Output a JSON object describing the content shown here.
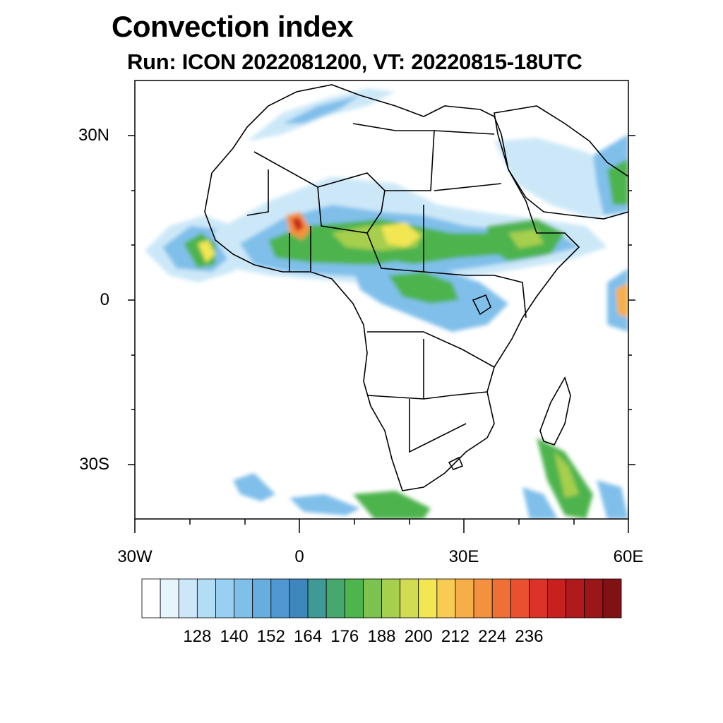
{
  "title": "Convection index",
  "subtitle": "Run: ICON 2022081200,  VT: 20220815-18UTC",
  "axes": {
    "y_ticks": [
      "30N",
      "0",
      "30S"
    ],
    "x_ticks": [
      "30W",
      "0",
      "30E",
      "60E"
    ]
  },
  "colorbar": {
    "colors": [
      "#ffffff",
      "#e6f4fc",
      "#cce8f8",
      "#b3dcf5",
      "#99d0f2",
      "#80bfea",
      "#66aee0",
      "#5098d2",
      "#3e86be",
      "#3f9a96",
      "#46a86e",
      "#4db44e",
      "#7cc24e",
      "#a6cf4e",
      "#d2dc52",
      "#f2e653",
      "#f8cc52",
      "#f6ae48",
      "#f4913e",
      "#ee7036",
      "#e8502e",
      "#dc3228",
      "#c8201f",
      "#b01a1c",
      "#9a1619",
      "#801214"
    ],
    "labels": [
      "128",
      "140",
      "152",
      "164",
      "176",
      "188",
      "200",
      "212",
      "224",
      "236"
    ]
  },
  "regions": {
    "sahel_band_colors": [
      "#cce8f8",
      "#80bfea",
      "#3e86be",
      "#4db44e",
      "#a6cf4e",
      "#f2e653",
      "#f4913e",
      "#c8201f"
    ]
  }
}
